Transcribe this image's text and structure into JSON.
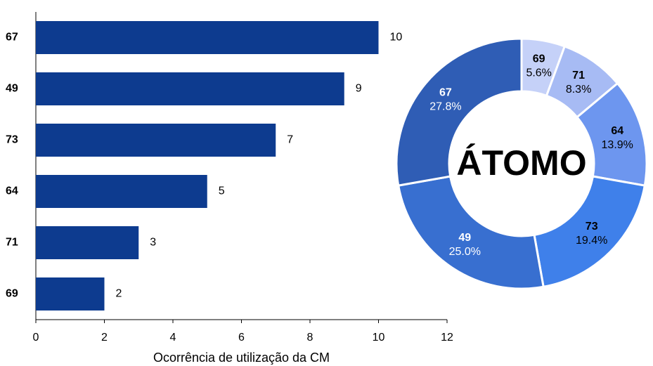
{
  "chart_data": [
    {
      "type": "hbar",
      "categories": [
        "67",
        "49",
        "73",
        "64",
        "71",
        "69"
      ],
      "values": [
        10,
        9,
        7,
        5,
        3,
        2
      ],
      "color": "#0d3b8f",
      "xlim": [
        0,
        12
      ],
      "xticks": [
        0,
        2,
        4,
        6,
        8,
        10,
        12
      ],
      "xlabel": "Ocorrência de utilização da CM"
    },
    {
      "type": "donut",
      "title": "ÁTOMO",
      "categories": [
        "69",
        "71",
        "64",
        "73",
        "49",
        "67"
      ],
      "values": [
        5.6,
        8.3,
        13.9,
        19.4,
        25.0,
        27.8
      ],
      "value_labels": [
        "5.6%",
        "8.3%",
        "13.9%",
        "19.4%",
        "25.0%",
        "27.8%"
      ],
      "colors": [
        "#c5d1f8",
        "#a7bbf4",
        "#6d96ef",
        "#3f80ea",
        "#386fd0",
        "#2f5db5"
      ]
    }
  ]
}
